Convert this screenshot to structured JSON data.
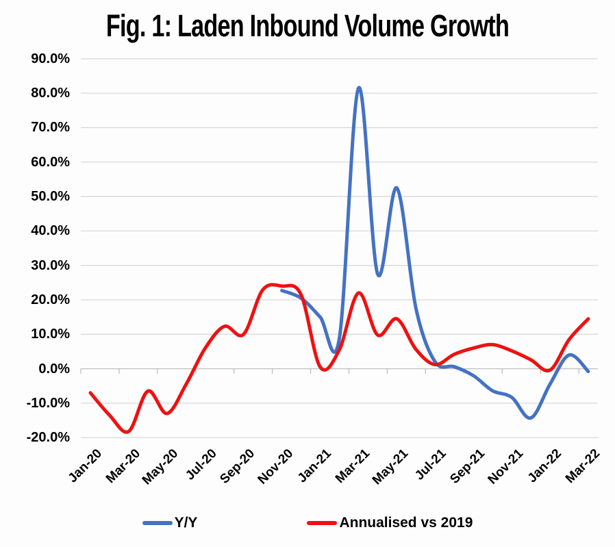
{
  "chart_data": {
    "type": "line",
    "title": "Fig. 1: Laden Inbound Volume Growth",
    "x": [
      "Jan-20",
      "Feb-20",
      "Mar-20",
      "Apr-20",
      "May-20",
      "Jun-20",
      "Jul-20",
      "Aug-20",
      "Sep-20",
      "Oct-20",
      "Nov-20",
      "Dec-20",
      "Jan-21",
      "Feb-21",
      "Mar-21",
      "Apr-21",
      "May-21",
      "Jun-21",
      "Jul-21",
      "Aug-21",
      "Sep-21",
      "Oct-21",
      "Nov-21",
      "Dec-21",
      "Jan-22",
      "Feb-22",
      "Mar-22"
    ],
    "x_axis_tick_labels": [
      "Jan-20",
      "Mar-20",
      "May-20",
      "Jul-20",
      "Sep-20",
      "Nov-20",
      "Jan-21",
      "Mar-21",
      "May-21",
      "Jul-21",
      "Sep-21",
      "Nov-21",
      "Jan-22",
      "Mar-22"
    ],
    "y_axis_tick_labels": [
      "90.0%",
      "80.0%",
      "70.0%",
      "60.0%",
      "50.0%",
      "40.0%",
      "30.0%",
      "20.0%",
      "10.0%",
      "0.0%",
      "-10.0%",
      "-20.0%"
    ],
    "y_unit": "percent",
    "ylim": [
      -20,
      90
    ],
    "y_gridline_step": 10,
    "grid": "horizontal",
    "legend_position": "bottom",
    "series": [
      {
        "name": "Y/Y",
        "color": "#4472C4",
        "values": [
          null,
          null,
          null,
          null,
          null,
          null,
          null,
          null,
          null,
          null,
          22.7,
          20.5,
          15.0,
          8.8,
          81.5,
          27.5,
          52.5,
          17.5,
          2.0,
          0.6,
          -2.0,
          -6.4,
          -8.3,
          -14.3,
          -4.5,
          4.0,
          -0.8
        ]
      },
      {
        "name": "Annualised vs 2019",
        "color": "#EE1111",
        "values": [
          -7.0,
          -13.5,
          -18.2,
          -6.5,
          -13.0,
          -4.5,
          6.0,
          12.3,
          10.0,
          22.9,
          24.0,
          21.5,
          0.5,
          5.5,
          22.0,
          9.8,
          14.5,
          5.6,
          1.2,
          4.2,
          6.0,
          7.0,
          5.2,
          2.6,
          -0.4,
          8.5,
          14.5
        ]
      }
    ],
    "colors": {
      "gridline": "#D9D9D9",
      "axis": "#BFBFBF",
      "text": "#000000",
      "frame_border": "#4673C4"
    }
  }
}
